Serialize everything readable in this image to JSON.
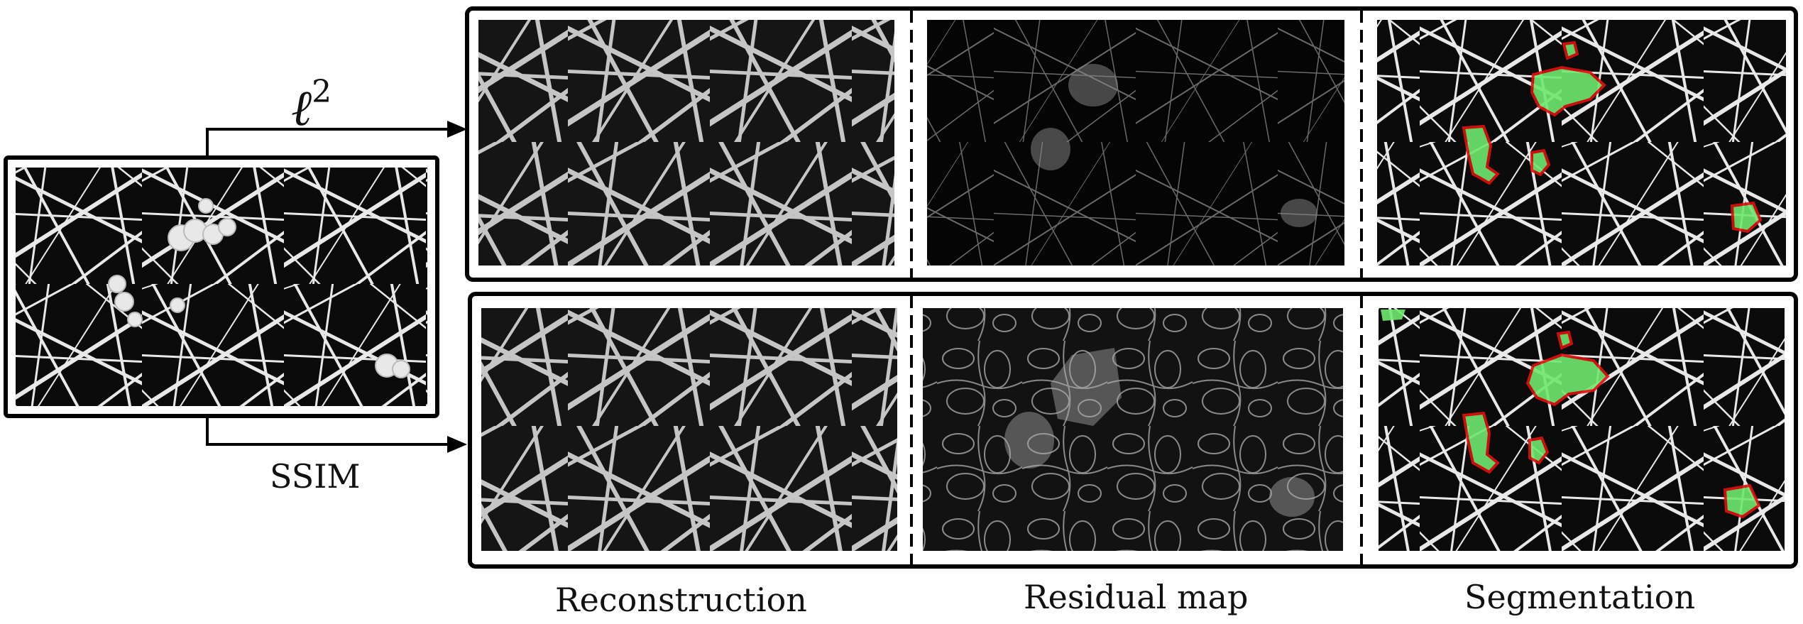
{
  "labels": {
    "top_loss": "ℓ",
    "top_loss_sup": "2",
    "bottom_loss": "SSIM",
    "columns": [
      "Reconstruction",
      "Residual map",
      "Segmentation"
    ]
  },
  "colors": {
    "frame": "#000000",
    "background": "#ffffff",
    "panel_dark": "#0a0a0a",
    "fiber": "#e6e6e6",
    "residual_fiber": "#9a9a9a",
    "defect_contour": "#e01010",
    "defect_fill": "#6ee86e"
  },
  "rows": [
    {
      "loss": "l2",
      "panels": [
        "reconstruction-panel",
        "residual-map-panel",
        "segmentation-panel"
      ]
    },
    {
      "loss": "ssim",
      "panels": [
        "reconstruction-panel",
        "residual-map-panel",
        "segmentation-panel"
      ]
    }
  ]
}
